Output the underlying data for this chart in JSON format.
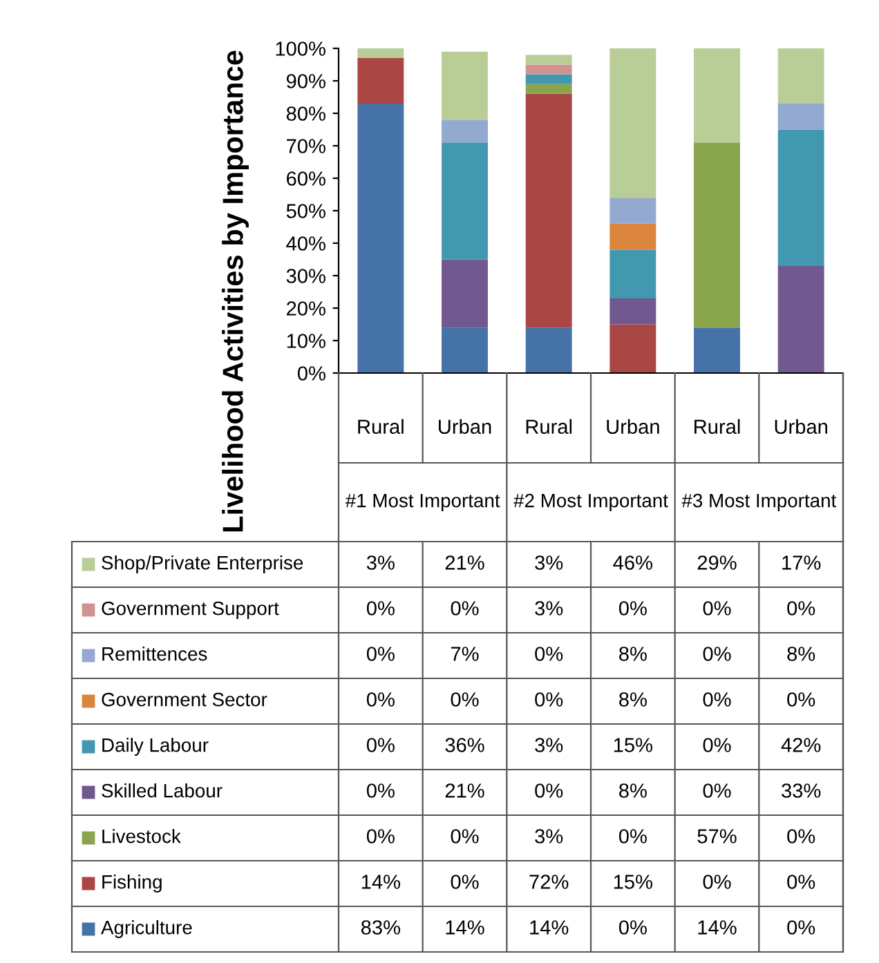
{
  "chart_data": {
    "type": "bar",
    "stacked": true,
    "ylabel": "Livelihood Activities by Importance",
    "categories": [
      "Rural",
      "Urban",
      "Rural",
      "Urban",
      "Rural",
      "Urban"
    ],
    "annotations": [
      "#1 Most Important",
      "#2 Most Important",
      "#3 Most Important"
    ],
    "ylim": [
      0,
      100
    ],
    "yticks": [
      {
        "value": 0,
        "label": "0%"
      },
      {
        "value": 10,
        "label": "10%"
      },
      {
        "value": 20,
        "label": "20%"
      },
      {
        "value": 30,
        "label": "30%"
      },
      {
        "value": 40,
        "label": "40%"
      },
      {
        "value": 50,
        "label": "50%"
      },
      {
        "value": 60,
        "label": "60%"
      },
      {
        "value": 70,
        "label": "70%"
      },
      {
        "value": 80,
        "label": "80%"
      },
      {
        "value": 90,
        "label": "90%"
      },
      {
        "value": 100,
        "label": "100%"
      }
    ],
    "grid": false,
    "legend": "bottom",
    "series": [
      {
        "name": "Agriculture",
        "color": "#4572a7",
        "values": [
          83,
          14,
          14,
          0,
          14,
          0
        ],
        "value_labels": [
          "83%",
          "14%",
          "14%",
          "0%",
          "14%",
          "0%"
        ]
      },
      {
        "name": "Fishing",
        "color": "#aa4643",
        "values": [
          14,
          0,
          72,
          15,
          0,
          0
        ],
        "value_labels": [
          "14%",
          "0%",
          "72%",
          "15%",
          "0%",
          "0%"
        ]
      },
      {
        "name": "Livestock",
        "color": "#89a54e",
        "values": [
          0,
          0,
          3,
          0,
          57,
          0
        ],
        "value_labels": [
          "0%",
          "0%",
          "3%",
          "0%",
          "57%",
          "0%"
        ]
      },
      {
        "name": "Skilled Labour",
        "color": "#71588f",
        "values": [
          0,
          21,
          0,
          8,
          0,
          33
        ],
        "value_labels": [
          "0%",
          "21%",
          "0%",
          "8%",
          "0%",
          "33%"
        ]
      },
      {
        "name": "Daily Labour",
        "color": "#4198af",
        "values": [
          0,
          36,
          3,
          15,
          0,
          42
        ],
        "value_labels": [
          "0%",
          "36%",
          "3%",
          "15%",
          "0%",
          "42%"
        ]
      },
      {
        "name": "Government Sector",
        "color": "#db843d",
        "values": [
          0,
          0,
          0,
          8,
          0,
          0
        ],
        "value_labels": [
          "0%",
          "0%",
          "0%",
          "8%",
          "0%",
          "0%"
        ]
      },
      {
        "name": "Remittences",
        "color": "#93a9cf",
        "values": [
          0,
          7,
          0,
          8,
          0,
          8
        ],
        "value_labels": [
          "0%",
          "7%",
          "0%",
          "8%",
          "0%",
          "8%"
        ]
      },
      {
        "name": "Government Support",
        "color": "#d19392",
        "values": [
          0,
          0,
          3,
          0,
          0,
          0
        ],
        "value_labels": [
          "0%",
          "0%",
          "3%",
          "0%",
          "0%",
          "0%"
        ]
      },
      {
        "name": "Shop/Private Enterprise",
        "color": "#b9cd96",
        "values": [
          3,
          21,
          3,
          46,
          29,
          17
        ],
        "value_labels": [
          "3%",
          "21%",
          "3%",
          "46%",
          "29%",
          "17%"
        ]
      }
    ]
  }
}
